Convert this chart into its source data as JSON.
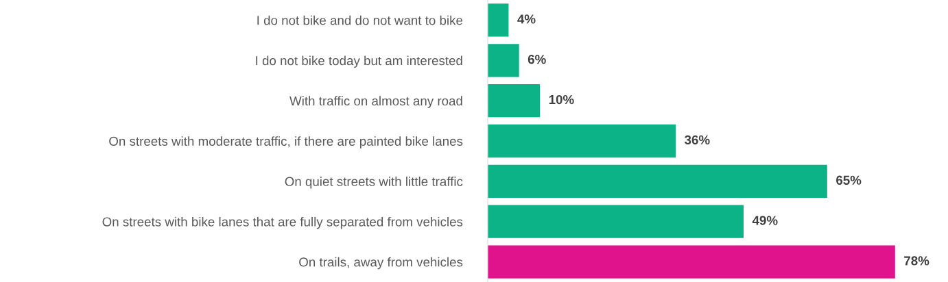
{
  "chart_data": {
    "type": "bar",
    "orientation": "horizontal",
    "categories": [
      "I do not bike and do not want to bike",
      "I do not bike today but am interested",
      "With traffic on almost any road",
      "On streets with moderate traffic, if there are painted bike lanes",
      "On quiet streets with little traffic",
      "On streets with bike lanes that are fully separated from vehicles",
      "On trails, away from vehicles"
    ],
    "values": [
      4,
      6,
      10,
      36,
      65,
      49,
      78
    ],
    "value_labels": [
      "4%",
      "6%",
      "10%",
      "36%",
      "65%",
      "49%",
      "78%"
    ],
    "colors": [
      "#0bb386",
      "#0bb386",
      "#0bb386",
      "#0bb386",
      "#0bb386",
      "#0bb386",
      "#e0138c"
    ],
    "grid": false,
    "legend": false
  }
}
